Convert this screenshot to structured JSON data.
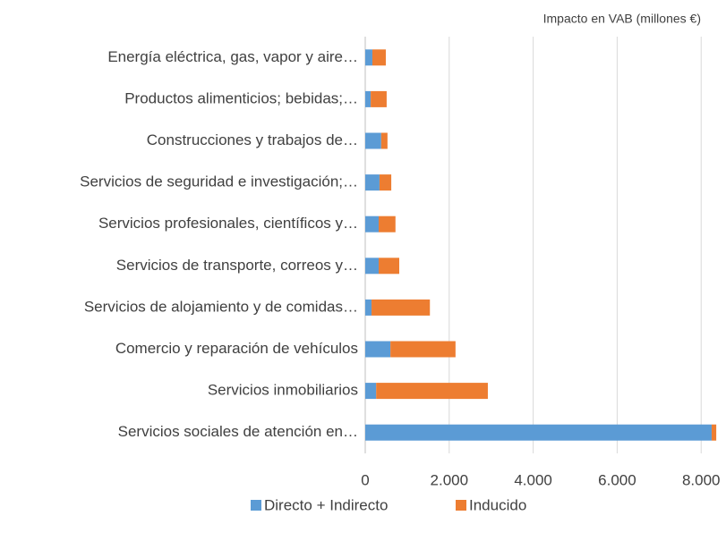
{
  "chart_data": {
    "type": "stacked_barh",
    "x_label": "Impacto en VAB (millones €)",
    "categories": [
      "Energía eléctrica, gas, vapor y aire…",
      "Productos alimenticios; bebidas;…",
      "Construcciones y trabajos de…",
      "Servicios de seguridad e investigación;…",
      "Servicios profesionales, científicos y…",
      "Servicios de transporte, correos y…",
      "Servicios de alojamiento y de comidas…",
      "Comercio y reparación de vehículos",
      "Servicios inmobiliarios",
      "Servicios sociales de atención en…"
    ],
    "series": [
      {
        "name": "Directo + Indirecto",
        "color": "#5b9bd5",
        "values": [
          170,
          130,
          380,
          340,
          320,
          320,
          150,
          600,
          260,
          8250
        ]
      },
      {
        "name": "Inducido",
        "color": "#ed7d31",
        "values": [
          320,
          380,
          150,
          280,
          400,
          490,
          1390,
          1550,
          2660,
          110
        ]
      }
    ],
    "xlim": [
      0,
      8400
    ],
    "xticks": [
      0,
      {
        "value": 2000,
        "label": "2.000"
      },
      {
        "value": 4000,
        "label": "4.000"
      },
      {
        "value": 6000,
        "label": "6.000"
      },
      {
        "value": 8000,
        "label": "8.000"
      }
    ],
    "grid": true,
    "legend": "bottom"
  }
}
